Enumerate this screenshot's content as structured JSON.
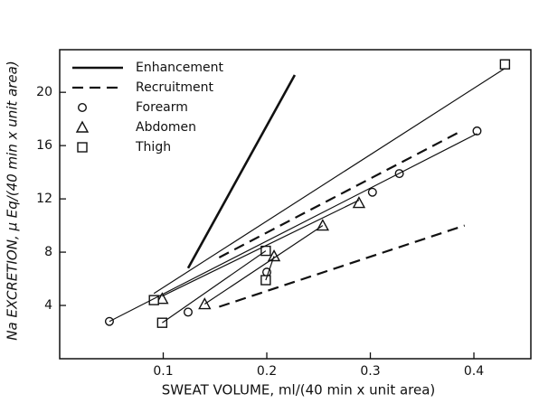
{
  "chart_data": {
    "type": "scatter",
    "x_label": "SWEAT VOLUME, ml/(40 min x unit area)",
    "y_label": "Na EXCRETION, μ Eq/(40 min x unit area)",
    "xlim": [
      0,
      0.455
    ],
    "ylim": [
      0,
      23.2
    ],
    "xticks": [
      0.1,
      0.2,
      0.3,
      0.4
    ],
    "yticks": [
      4,
      8,
      12,
      16,
      20
    ],
    "legend": "top-left",
    "series": [
      {
        "name": "Enhancement",
        "line": "solid-thick",
        "color": "#111",
        "x": [
          0.124,
          0.227
        ],
        "values": [
          6.8,
          21.3
        ]
      },
      {
        "name": "Recruitment",
        "line": "dashed",
        "color": "#111",
        "x": [
          0.154,
          0.388,
          null,
          0.154,
          0.391
        ],
        "values": [
          7.6,
          17.1,
          null,
          3.9,
          10.0
        ]
      },
      {
        "name": "Forearm",
        "marker": "circle",
        "color": "#111",
        "x": [
          0.048,
          0.124,
          0.2,
          0.302,
          0.328,
          0.403
        ],
        "values": [
          2.8,
          3.5,
          6.5,
          12.5,
          13.9,
          17.1
        ]
      },
      {
        "name": "Abdomen",
        "marker": "triangle",
        "color": "#111",
        "x": [
          0.099,
          0.14,
          0.207,
          0.254,
          0.289
        ],
        "values": [
          4.5,
          4.1,
          7.7,
          10.0,
          11.7
        ]
      },
      {
        "name": "Thigh",
        "marker": "square",
        "color": "#111",
        "x": [
          0.091,
          0.099,
          0.199,
          0.199,
          0.43
        ],
        "values": [
          4.4,
          2.7,
          8.1,
          5.9,
          22.1
        ]
      },
      {
        "line": "solid-thin",
        "color": "#111",
        "x": [
          0.091,
          0.43,
          null,
          0.099,
          0.289,
          null,
          0.048,
          0.403,
          null,
          0.14,
          0.254,
          null,
          0.099,
          0.199,
          null,
          0.199,
          0.207
        ],
        "values": [
          4.9,
          21.8,
          null,
          4.7,
          11.9,
          null,
          2.8,
          16.9,
          null,
          4.1,
          10.0,
          null,
          2.7,
          8.1,
          null,
          5.9,
          7.7
        ]
      }
    ]
  }
}
